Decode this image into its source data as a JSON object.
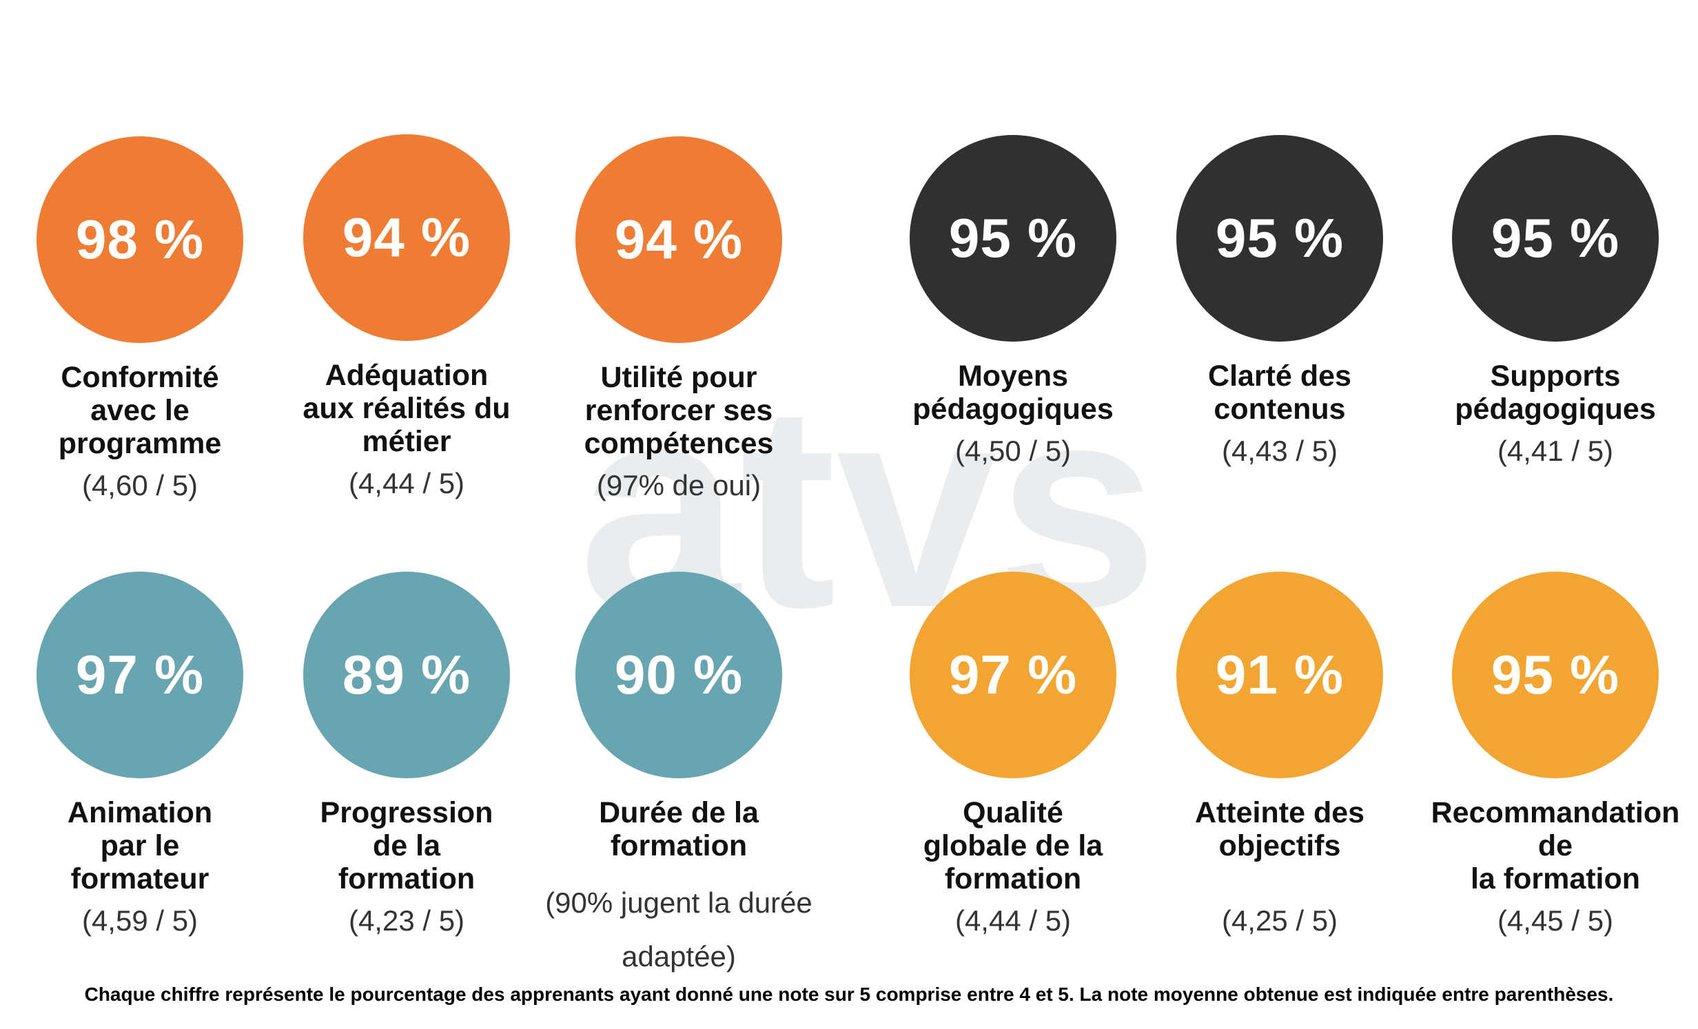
{
  "colors": {
    "orange": "#ee7d33",
    "dark": "#303030",
    "teal": "#68a5b0",
    "yellow": "#f2a631"
  },
  "watermark_text": "atvs",
  "stats": [
    {
      "value": "98 %",
      "label_lines": [
        "Conformité",
        "avec le",
        "programme"
      ],
      "score": "(4,60 / 5)",
      "color": "orange"
    },
    {
      "value": "94 %",
      "label_lines": [
        "Adéquation",
        "aux réalités du",
        "métier"
      ],
      "score": "(4,44 / 5)",
      "color": "orange"
    },
    {
      "value": "94 %",
      "label_lines": [
        "Utilité pour",
        "renforcer ses",
        "compétences"
      ],
      "score": "(97% de oui)",
      "color": "orange"
    },
    {
      "value": "95 %",
      "label_lines": [
        "Moyens",
        "pédagogiques"
      ],
      "score": "(4,50 / 5)",
      "color": "dark"
    },
    {
      "value": "95 %",
      "label_lines": [
        "Clarté des",
        "contenus"
      ],
      "score": "(4,43 / 5)",
      "color": "dark"
    },
    {
      "value": "95 %",
      "label_lines": [
        "Supports",
        "pédagogiques"
      ],
      "score": "(4,41 / 5)",
      "color": "dark"
    },
    {
      "value": "97 %",
      "label_lines": [
        "Animation",
        "par le",
        "formateur"
      ],
      "score": "(4,59 / 5)",
      "color": "teal"
    },
    {
      "value": "89 %",
      "label_lines": [
        "Progression",
        "de la",
        "formation"
      ],
      "score": "(4,23 / 5)",
      "color": "teal"
    },
    {
      "value": "90 %",
      "label_lines": [
        "Durée de la",
        "formation"
      ],
      "score": "(90% jugent la durée adaptée)",
      "color": "teal"
    },
    {
      "value": "97 %",
      "label_lines": [
        "Qualité",
        "globale de la",
        "formation"
      ],
      "score": "(4,44 / 5)",
      "color": "yellow"
    },
    {
      "value": "91 %",
      "label_lines": [
        "Atteinte des",
        "objectifs"
      ],
      "score": "(4,25 / 5)",
      "color": "yellow"
    },
    {
      "value": "95 %",
      "label_lines": [
        "Recommandation",
        "de",
        "la formation"
      ],
      "score": "(4,45 / 5)",
      "color": "yellow"
    }
  ],
  "footnote": "Chaque chiffre représente le pourcentage des apprenants ayant donné une note sur 5 comprise entre 4 et 5. La note moyenne obtenue est indiquée entre parenthèses."
}
